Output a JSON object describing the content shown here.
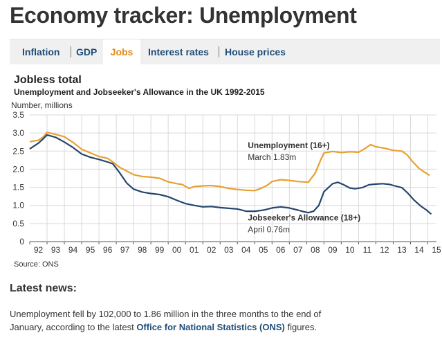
{
  "page": {
    "title": "Economy tracker: Unemployment"
  },
  "tabs": [
    {
      "label": "Inflation",
      "active": false
    },
    {
      "label": "GDP",
      "active": false
    },
    {
      "label": "Jobs",
      "active": true
    },
    {
      "label": "Interest rates",
      "active": false
    },
    {
      "label": "House prices",
      "active": false
    }
  ],
  "chart_data": {
    "type": "line",
    "title": "Jobless total",
    "subtitle": "Unemployment and Jobseeker's Allowance in the UK 1992-2015",
    "ylabel": "Number, millions",
    "ylim": [
      0,
      3.5
    ],
    "yticks": [
      "0",
      "0.5",
      "1.0",
      "1.5",
      "2.0",
      "2.5",
      "3.0",
      "3.5"
    ],
    "xlim": [
      1992,
      2015.5
    ],
    "xtick_labels": [
      "92",
      "93",
      "94",
      "95",
      "96",
      "97",
      "98",
      "99",
      "00",
      "01",
      "02",
      "03",
      "04",
      "05",
      "06",
      "07",
      "08",
      "09",
      "10",
      "11",
      "12",
      "13",
      "14",
      "15"
    ],
    "grid": true,
    "colors": {
      "unemployment": "#e8a030",
      "jsa": "#24466e",
      "grid": "#d9d9d9",
      "axis": "#555555"
    },
    "series": [
      {
        "key": "unemployment",
        "annotation_name": "Unemployment (16+)",
        "annotation_value": "March 1.83m",
        "x": [
          1992.0,
          1992.5,
          1992.8,
          1993.0,
          1993.5,
          1994.0,
          1994.5,
          1995.0,
          1995.5,
          1996.0,
          1996.5,
          1996.8,
          1997.2,
          1997.6,
          1998.0,
          1998.5,
          1999.0,
          1999.5,
          2000.0,
          2000.5,
          2000.8,
          2001.2,
          2001.5,
          2002.0,
          2002.5,
          2003.0,
          2003.5,
          2004.0,
          2004.5,
          2005.0,
          2005.3,
          2005.7,
          2006.0,
          2006.5,
          2007.0,
          2007.5,
          2007.8,
          2008.1,
          2008.5,
          2008.8,
          2009.0,
          2009.5,
          2010.0,
          2010.5,
          2011.0,
          2011.3,
          2011.7,
          2012.0,
          2012.5,
          2013.0,
          2013.5,
          2013.8,
          2014.1,
          2014.5,
          2014.8,
          2015.1
        ],
        "y": [
          2.76,
          2.8,
          2.9,
          3.02,
          2.96,
          2.9,
          2.74,
          2.55,
          2.45,
          2.35,
          2.3,
          2.2,
          2.05,
          1.95,
          1.85,
          1.8,
          1.78,
          1.75,
          1.65,
          1.6,
          1.58,
          1.47,
          1.52,
          1.54,
          1.55,
          1.52,
          1.47,
          1.44,
          1.42,
          1.41,
          1.46,
          1.55,
          1.66,
          1.71,
          1.69,
          1.66,
          1.65,
          1.64,
          1.9,
          2.25,
          2.45,
          2.49,
          2.46,
          2.48,
          2.47,
          2.55,
          2.68,
          2.62,
          2.58,
          2.52,
          2.5,
          2.4,
          2.22,
          2.02,
          1.92,
          1.83
        ]
      },
      {
        "key": "jsa",
        "annotation_name": "Jobseeker's Allowance (18+)",
        "annotation_value": "April 0.76m",
        "x": [
          1992.0,
          1992.5,
          1992.8,
          1993.0,
          1993.5,
          1994.0,
          1994.5,
          1995.0,
          1995.5,
          1996.0,
          1996.5,
          1996.8,
          1997.2,
          1997.6,
          1998.0,
          1998.5,
          1999.0,
          1999.5,
          2000.0,
          2000.5,
          2001.0,
          2001.5,
          2002.0,
          2002.5,
          2003.0,
          2003.5,
          2004.0,
          2004.5,
          2005.0,
          2005.5,
          2006.0,
          2006.5,
          2007.0,
          2007.5,
          2007.8,
          2008.1,
          2008.4,
          2008.7,
          2009.0,
          2009.5,
          2009.8,
          2010.1,
          2010.5,
          2010.8,
          2011.2,
          2011.6,
          2012.0,
          2012.4,
          2012.8,
          2013.1,
          2013.5,
          2013.8,
          2014.2,
          2014.6,
          2014.9,
          2015.2
        ],
        "y": [
          2.56,
          2.72,
          2.85,
          2.95,
          2.88,
          2.75,
          2.6,
          2.42,
          2.33,
          2.27,
          2.2,
          2.15,
          1.9,
          1.62,
          1.45,
          1.37,
          1.33,
          1.3,
          1.24,
          1.14,
          1.05,
          1.0,
          0.96,
          0.97,
          0.94,
          0.92,
          0.9,
          0.84,
          0.84,
          0.87,
          0.93,
          0.96,
          0.93,
          0.87,
          0.83,
          0.8,
          0.84,
          1.0,
          1.38,
          1.6,
          1.64,
          1.58,
          1.48,
          1.46,
          1.49,
          1.57,
          1.59,
          1.6,
          1.58,
          1.54,
          1.49,
          1.36,
          1.15,
          0.98,
          0.88,
          0.76
        ]
      }
    ]
  },
  "source_label": "Source: ONS",
  "latest_news": {
    "heading": "Latest news:",
    "text_before": "Unemployment fell by 102,000 to 1.86 million in the three months to the end of January, according to the latest ",
    "link_text": "Office for National Statistics (ONS)",
    "text_after": " figures."
  }
}
